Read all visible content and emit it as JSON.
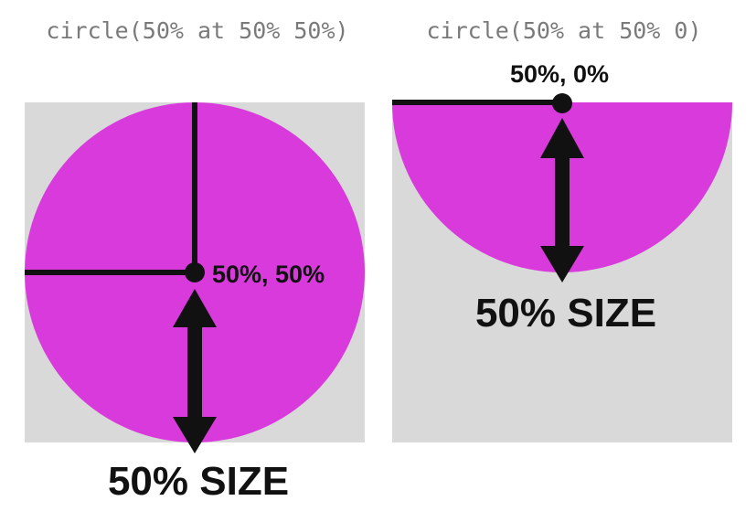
{
  "colors": {
    "background": "#ffffff",
    "panel": "#d9d9d9",
    "shape": "#d93adb",
    "ink": "#111111",
    "code": "#7a7a7a"
  },
  "left": {
    "code_label": "circle(50% at 50% 50%)",
    "position_label": "50%, 50%",
    "size_label": "50% SIZE"
  },
  "right": {
    "code_label": "circle(50% at 50% 0)",
    "position_label": "50%, 0%",
    "size_label": "50% SIZE"
  }
}
